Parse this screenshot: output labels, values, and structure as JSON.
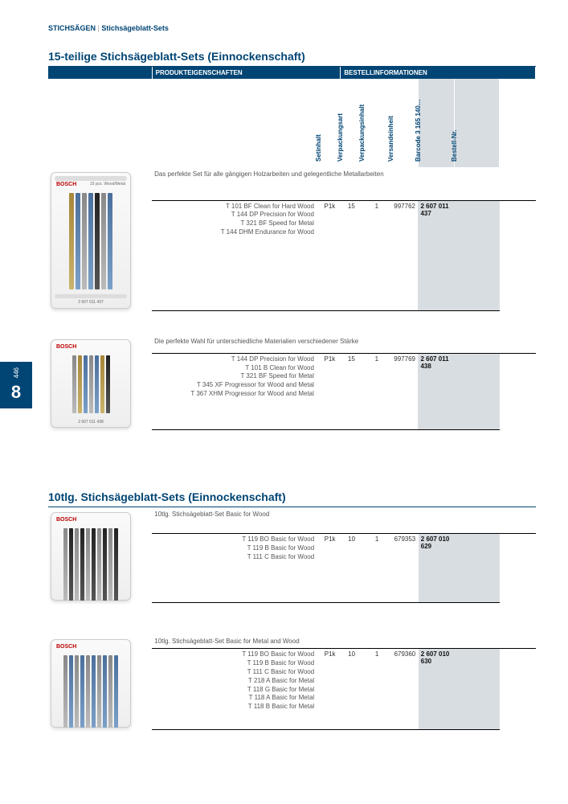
{
  "breadcrumb": {
    "section": "STICHSÄGEN",
    "sep": " | ",
    "page": "Stichsägeblatt-Sets"
  },
  "columns": {
    "produkt": "PRODUKTEIGENSCHAFTEN",
    "bestell": "BESTELLINFORMATIONEN",
    "c1": "Setinhalt",
    "c2": "Verpackungsart",
    "c3": "Verpackungsinhalt",
    "c4": "Versandeinheit",
    "c5": "Barcode 3 165 140…",
    "c6": "Bestell-Nr."
  },
  "section1": {
    "title": "15-teilige Stichsägeblatt-Sets (Einnockenschaft)",
    "items": [
      {
        "desc": "Das perfekte Set für alle gängigen Holzarbeiten und gelegentliche Metallarbeiten",
        "lines": [
          "T 101 BF Clean for Hard Wood",
          "T 144 DP Precision for Wood",
          "T 321 BF Speed for Metal",
          "T 144 DHM Endurance for Wood"
        ],
        "v1": "P1k",
        "v2": "15",
        "v3": "1",
        "v4": "997762",
        "barcode": "2 607 011 437",
        "img": {
          "brand": "BOSCH",
          "sub": "15 pcs. Wood/Metal",
          "blades": [
            "b-gold",
            "b-blue",
            "b-grey",
            "b-blue",
            "b-dark",
            "b-grey",
            "b-blue"
          ],
          "size": "tall",
          "label": "2 607 011 437"
        }
      },
      {
        "desc": "Die perfekte Wahl für unterschiedliche Materialien verschiedener Stärke",
        "lines": [
          "T 144 DP Precision for Wood",
          "T 101 B Clean for Wood",
          "T 321 BF Speed for Metal",
          "T 345 XF Progressor for Wood and Metal",
          "T 367 XHM Progressor for Wood and Metal"
        ],
        "v1": "P1k",
        "v2": "15",
        "v3": "1",
        "v4": "997769",
        "barcode": "2 607 011 438",
        "img": {
          "brand": "BOSCH",
          "sub": "",
          "blades": [
            "b-grey",
            "b-gold",
            "b-blue",
            "b-grey",
            "b-blue",
            "b-gold",
            "b-dark"
          ],
          "size": "med",
          "label": "2 607 011 438"
        }
      }
    ]
  },
  "section2": {
    "title": "10tlg. Stichsägeblatt-Sets (Einnockenschaft)",
    "items": [
      {
        "desc": "10tlg. Stichsägeblatt-Set Basic for Wood",
        "lines": [
          "T 119 BO Basic for Wood",
          "T 119 B Basic for Wood",
          "T 111 C Basic for Wood"
        ],
        "v1": "P1k",
        "v2": "10",
        "v3": "1",
        "v4": "679353",
        "barcode": "2 607 010 629",
        "img": {
          "brand": "BOSCH",
          "blades": [
            "b-grey",
            "b-dark",
            "b-grey",
            "b-dark",
            "b-grey",
            "b-dark",
            "b-grey",
            "b-dark",
            "b-grey",
            "b-dark"
          ],
          "size": "row",
          "label": ""
        }
      },
      {
        "desc": "10tlg. Stichsägeblatt-Set Basic for Metal and Wood",
        "lines": [
          "T 119 BO Basic for Wood",
          "T 119 B Basic for Wood",
          "T 111 C Basic for Wood",
          "T 218 A Basic for Metal",
          "T 118 G Basic for Metal",
          "T 118 A Basic for Metal",
          "T 118 B Basic for Metal"
        ],
        "v1": "P1k",
        "v2": "10",
        "v3": "1",
        "v4": "679360",
        "barcode": "2 607 010 630",
        "img": {
          "brand": "BOSCH",
          "blades": [
            "b-grey",
            "b-blue",
            "b-grey",
            "b-blue",
            "b-grey",
            "b-blue",
            "b-grey",
            "b-blue",
            "b-grey",
            "b-blue"
          ],
          "size": "row",
          "label": ""
        }
      }
    ]
  },
  "sidetab": {
    "page": "446",
    "chapter": "8"
  }
}
